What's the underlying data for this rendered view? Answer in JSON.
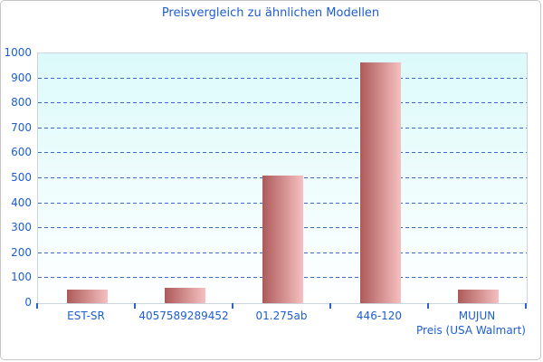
{
  "chart_data": {
    "type": "bar",
    "title": "Preisvergleich zu ähnlichen Modellen",
    "categories": [
      "EST-SR",
      "4057589289452",
      "01.275ab",
      "446-120",
      "MUJUN"
    ],
    "values": [
      56,
      62,
      512,
      965,
      54
    ],
    "xlabel": "Preis (USA Walmart)",
    "ylabel": "",
    "ylim": [
      0,
      1000
    ],
    "ytick_step": 100,
    "grid": "horizontal-dashed",
    "legend": "none",
    "colors": {
      "title_text": "#1d5ed2",
      "axis_text": "#1d5ed2",
      "gridline": "#3a6bcc",
      "tick": "#2b62c9",
      "bar_gradient_left": "#ad5a5a",
      "bar_gradient_right": "#f6c0c0",
      "plot_bg_top": "#dcfafb",
      "plot_bg_bottom": "#ffffff",
      "plot_border": "#ccd5d9",
      "outer_border": "#c6c6c6"
    }
  }
}
